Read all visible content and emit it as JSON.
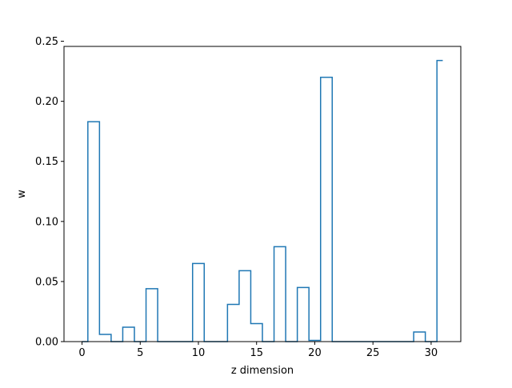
{
  "chart_data": {
    "type": "step",
    "title": "",
    "xlabel": "z dimension",
    "ylabel": "w",
    "x": [
      0,
      1,
      2,
      3,
      4,
      5,
      6,
      7,
      8,
      9,
      10,
      11,
      12,
      13,
      14,
      15,
      16,
      17,
      18,
      19,
      20,
      21,
      22,
      23,
      24,
      25,
      26,
      27,
      28,
      29,
      30,
      31
    ],
    "values": [
      0.0,
      0.183,
      0.006,
      0.0,
      0.012,
      0.0,
      0.044,
      0.0,
      0.0,
      0.0,
      0.065,
      0.0,
      0.0,
      0.031,
      0.059,
      0.015,
      0.0,
      0.079,
      0.0,
      0.045,
      0.001,
      0.22,
      0.0,
      0.0,
      0.0,
      0.0,
      0.0,
      0.0,
      0.0,
      0.008,
      0.0,
      0.234
    ],
    "step_where": "mid",
    "xlim": [
      -1.55,
      32.55
    ],
    "ylim": [
      0.0,
      0.2457
    ],
    "xticks": [
      0,
      5,
      10,
      15,
      20,
      25,
      30
    ],
    "yticks": [
      0.0,
      0.05,
      0.1,
      0.15,
      0.2,
      0.25
    ],
    "xtick_labels": [
      "0",
      "5",
      "10",
      "15",
      "20",
      "25",
      "30"
    ],
    "ytick_labels": [
      "0.00",
      "0.05",
      "0.10",
      "0.15",
      "0.20",
      "0.25"
    ],
    "line_color": "#1f77b4",
    "grid": false,
    "legend": "none"
  }
}
